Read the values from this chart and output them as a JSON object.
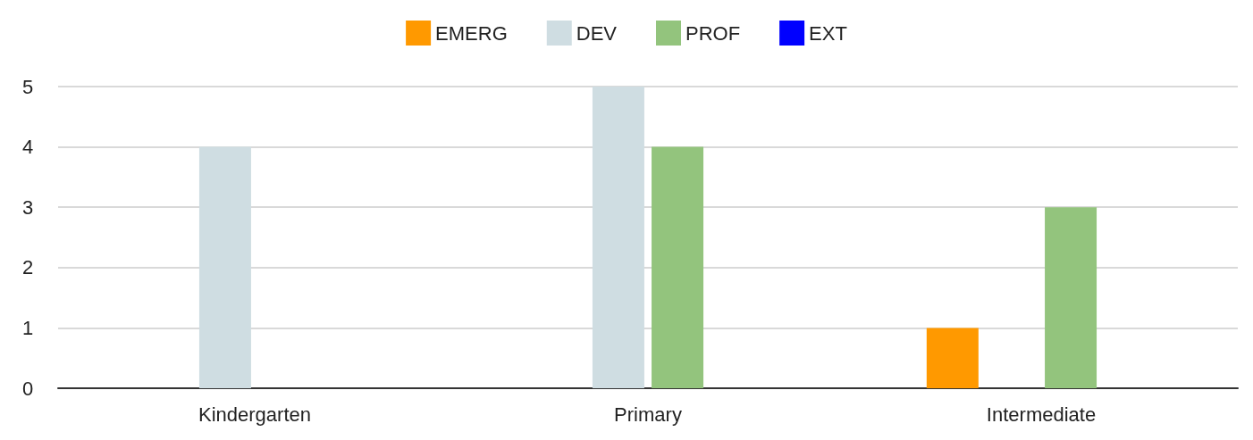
{
  "chart_data": {
    "type": "bar",
    "categories": [
      "Kindergarten",
      "Primary",
      "Intermediate"
    ],
    "series": [
      {
        "name": "EMERG",
        "color": "#ff9900",
        "values": [
          0,
          0,
          1
        ]
      },
      {
        "name": "DEV",
        "color": "#cfdde2",
        "values": [
          4,
          5,
          0
        ]
      },
      {
        "name": "PROF",
        "color": "#93c47d",
        "values": [
          0,
          4,
          3
        ]
      },
      {
        "name": "EXT",
        "color": "#0000ff",
        "values": [
          0,
          0,
          0
        ]
      }
    ],
    "ylim": [
      0,
      5
    ],
    "yticks": [
      0,
      1,
      2,
      3,
      4,
      5
    ],
    "grid": "y",
    "legend": "top"
  }
}
